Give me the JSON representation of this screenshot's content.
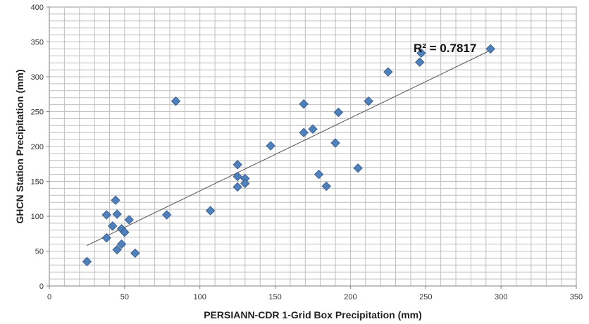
{
  "chart_data": {
    "type": "scatter",
    "xlabel": "PERSIANN-CDR 1-Grid Box Precipitation (mm)",
    "ylabel": "GHCN Station Precipitation (mm)",
    "xlim": [
      0,
      350
    ],
    "ylim": [
      0,
      400
    ],
    "x_ticks": [
      0,
      50,
      100,
      150,
      200,
      250,
      300,
      350
    ],
    "y_ticks": [
      0,
      50,
      100,
      150,
      200,
      250,
      300,
      350,
      400
    ],
    "x_minor_step": 10,
    "y_minor_step": 10,
    "grid": true,
    "legend": "none",
    "marker": "diamond",
    "colors": {
      "marker_fill": "#4F81BD",
      "marker_edge": "#3A5F8F",
      "trendline": "#555555",
      "grid": "#bfbfbf"
    },
    "annotation": "R² = 0.7817",
    "series": [
      {
        "points": [
          [
            25,
            35
          ],
          [
            38,
            69
          ],
          [
            38,
            102
          ],
          [
            42,
            86
          ],
          [
            44,
            123
          ],
          [
            45,
            103
          ],
          [
            45,
            52
          ],
          [
            48,
            82
          ],
          [
            48,
            60
          ],
          [
            50,
            77
          ],
          [
            53,
            95
          ],
          [
            57,
            47
          ],
          [
            78,
            102
          ],
          [
            84,
            265
          ],
          [
            107,
            108
          ],
          [
            125,
            174
          ],
          [
            125,
            157
          ],
          [
            125,
            142
          ],
          [
            130,
            154
          ],
          [
            130,
            147
          ],
          [
            147,
            201
          ],
          [
            169,
            261
          ],
          [
            169,
            220
          ],
          [
            175,
            225
          ],
          [
            179,
            160
          ],
          [
            184,
            143
          ],
          [
            190,
            205
          ],
          [
            192,
            249
          ],
          [
            205,
            169
          ],
          [
            212,
            265
          ],
          [
            225,
            307
          ],
          [
            246,
            321
          ],
          [
            247,
            334
          ],
          [
            293,
            340
          ]
        ]
      }
    ],
    "trendline": {
      "x1": 25,
      "y1": 58,
      "x2": 293,
      "y2": 338
    }
  }
}
